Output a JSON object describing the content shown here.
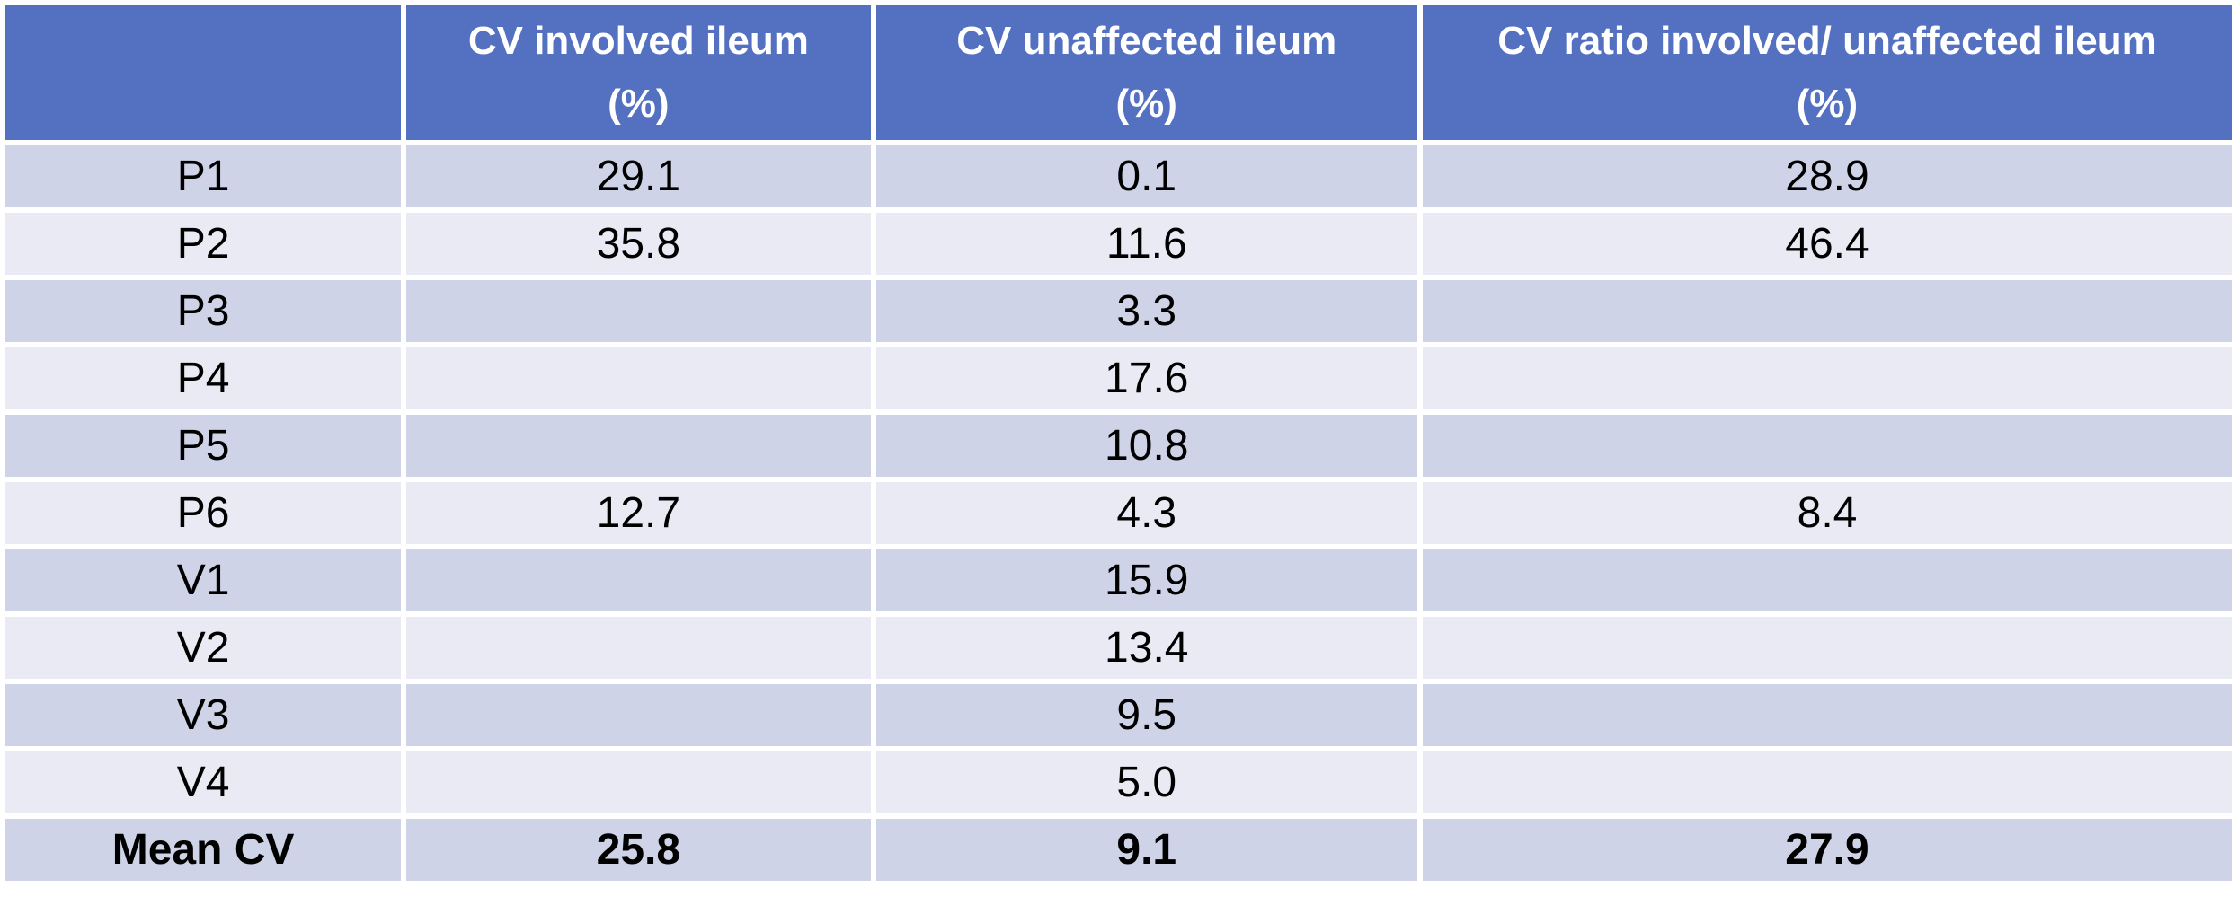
{
  "chart_data": {
    "type": "table",
    "columns": [
      "",
      "CV involved ileum (%)",
      "CV unaffected ileum (%)",
      "CV ratio involved/ unaffected ileum (%)"
    ],
    "rows": [
      {
        "label": "P1",
        "cv_involved": 29.1,
        "cv_unaffected": 0.1,
        "cv_ratio": 28.9
      },
      {
        "label": "P2",
        "cv_involved": 35.8,
        "cv_unaffected": 11.6,
        "cv_ratio": 46.4
      },
      {
        "label": "P3",
        "cv_involved": null,
        "cv_unaffected": 3.3,
        "cv_ratio": null
      },
      {
        "label": "P4",
        "cv_involved": null,
        "cv_unaffected": 17.6,
        "cv_ratio": null
      },
      {
        "label": "P5",
        "cv_involved": null,
        "cv_unaffected": 10.8,
        "cv_ratio": null
      },
      {
        "label": "P6",
        "cv_involved": 12.7,
        "cv_unaffected": 4.3,
        "cv_ratio": 8.4
      },
      {
        "label": "V1",
        "cv_involved": null,
        "cv_unaffected": 15.9,
        "cv_ratio": null
      },
      {
        "label": "V2",
        "cv_involved": null,
        "cv_unaffected": 13.4,
        "cv_ratio": null
      },
      {
        "label": "V3",
        "cv_involved": null,
        "cv_unaffected": 9.5,
        "cv_ratio": null
      },
      {
        "label": "V4",
        "cv_involved": null,
        "cv_unaffected": 5.0,
        "cv_ratio": null
      },
      {
        "label": "Mean CV",
        "cv_involved": 25.8,
        "cv_unaffected": 9.1,
        "cv_ratio": 27.9
      }
    ]
  },
  "table": {
    "header": [
      {
        "line1": "",
        "line2": ""
      },
      {
        "line1": "CV involved ileum",
        "line2": "(%)"
      },
      {
        "line1": "CV unaffected ileum",
        "line2": "(%)"
      },
      {
        "line1": "CV ratio involved/ unaffected ileum",
        "line2": "(%)"
      }
    ],
    "rows": [
      {
        "label": "P1",
        "c1": "29.1",
        "c2": "0.1",
        "c3": "28.9"
      },
      {
        "label": "P2",
        "c1": "35.8",
        "c2": "11.6",
        "c3": "46.4"
      },
      {
        "label": "P3",
        "c1": "",
        "c2": "3.3",
        "c3": ""
      },
      {
        "label": "P4",
        "c1": "",
        "c2": "17.6",
        "c3": ""
      },
      {
        "label": "P5",
        "c1": "",
        "c2": "10.8",
        "c3": ""
      },
      {
        "label": "P6",
        "c1": "12.7",
        "c2": "4.3",
        "c3": "8.4"
      },
      {
        "label": "V1",
        "c1": "",
        "c2": "15.9",
        "c3": ""
      },
      {
        "label": "V2",
        "c1": "",
        "c2": "13.4",
        "c3": ""
      },
      {
        "label": "V3",
        "c1": "",
        "c2": "9.5",
        "c3": ""
      },
      {
        "label": "V4",
        "c1": "",
        "c2": "5.0",
        "c3": ""
      },
      {
        "label": "Mean CV",
        "c1": "25.8",
        "c2": "9.1",
        "c3": "27.9"
      }
    ]
  },
  "colors": {
    "header_bg": "#5471C1",
    "header_text": "#FFFFFF",
    "row_dark": "#CED3E7",
    "row_light": "#E9EAF4",
    "body_text": "#000000",
    "border": "#FFFFFF"
  }
}
